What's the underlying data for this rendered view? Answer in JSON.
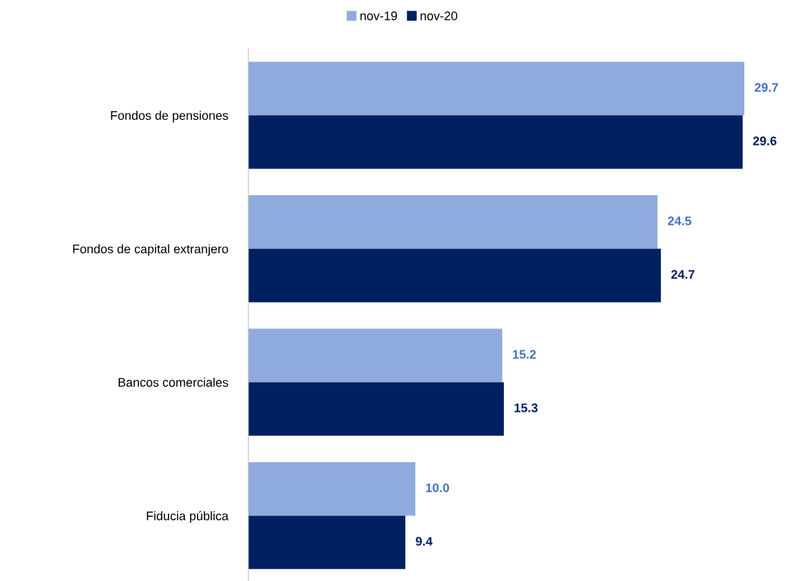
{
  "chart_data": {
    "type": "bar",
    "orientation": "horizontal",
    "categories": [
      "Fondos de pensiones",
      "Fondos de capital extranjero",
      "Bancos comerciales",
      "Fiducia pública"
    ],
    "series": [
      {
        "name": "nov-19",
        "color": "#8faadc",
        "values": [
          29.7,
          24.5,
          15.2,
          10.0
        ],
        "value_labels": [
          "29.7",
          "24.5",
          "15.2",
          "10.0"
        ]
      },
      {
        "name": "nov-20",
        "color": "#002060",
        "values": [
          29.6,
          24.7,
          15.3,
          9.4
        ],
        "value_labels": [
          "29.6",
          "24.7",
          "15.3",
          "9.4"
        ]
      }
    ],
    "legend": "top",
    "grid": false
  }
}
